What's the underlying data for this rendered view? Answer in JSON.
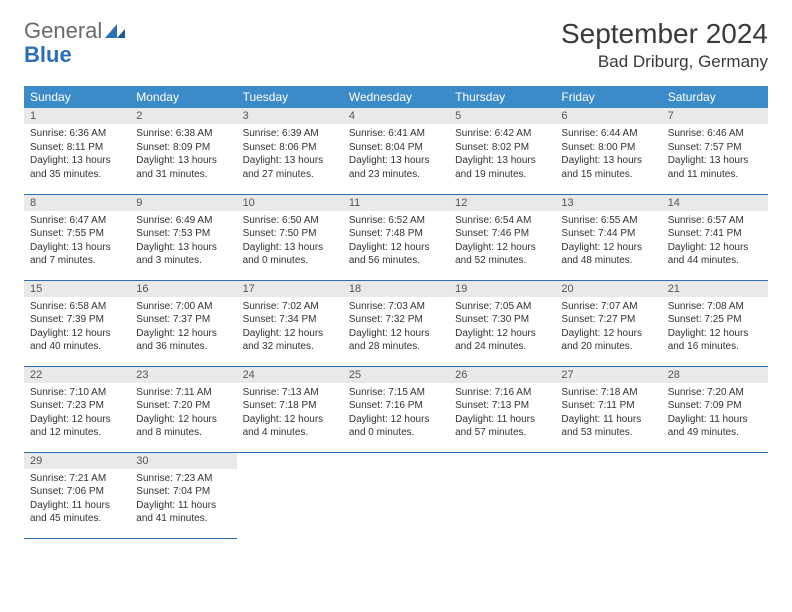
{
  "logo": {
    "general": "General",
    "blue": "Blue"
  },
  "header": {
    "title": "September 2024",
    "location": "Bad Driburg, Germany"
  },
  "colors": {
    "header_bg": "#3b8bc9",
    "header_text": "#ffffff",
    "daynum_bg": "#e9e9e9",
    "border": "#2d6fb5",
    "logo_blue": "#2d6fb5"
  },
  "weekdays": [
    "Sunday",
    "Monday",
    "Tuesday",
    "Wednesday",
    "Thursday",
    "Friday",
    "Saturday"
  ],
  "days": [
    {
      "n": "1",
      "sr": "6:36 AM",
      "ss": "8:11 PM",
      "dh": "13",
      "dm": "35"
    },
    {
      "n": "2",
      "sr": "6:38 AM",
      "ss": "8:09 PM",
      "dh": "13",
      "dm": "31"
    },
    {
      "n": "3",
      "sr": "6:39 AM",
      "ss": "8:06 PM",
      "dh": "13",
      "dm": "27"
    },
    {
      "n": "4",
      "sr": "6:41 AM",
      "ss": "8:04 PM",
      "dh": "13",
      "dm": "23"
    },
    {
      "n": "5",
      "sr": "6:42 AM",
      "ss": "8:02 PM",
      "dh": "13",
      "dm": "19"
    },
    {
      "n": "6",
      "sr": "6:44 AM",
      "ss": "8:00 PM",
      "dh": "13",
      "dm": "15"
    },
    {
      "n": "7",
      "sr": "6:46 AM",
      "ss": "7:57 PM",
      "dh": "13",
      "dm": "11"
    },
    {
      "n": "8",
      "sr": "6:47 AM",
      "ss": "7:55 PM",
      "dh": "13",
      "dm": "7"
    },
    {
      "n": "9",
      "sr": "6:49 AM",
      "ss": "7:53 PM",
      "dh": "13",
      "dm": "3"
    },
    {
      "n": "10",
      "sr": "6:50 AM",
      "ss": "7:50 PM",
      "dh": "13",
      "dm": "0"
    },
    {
      "n": "11",
      "sr": "6:52 AM",
      "ss": "7:48 PM",
      "dh": "12",
      "dm": "56"
    },
    {
      "n": "12",
      "sr": "6:54 AM",
      "ss": "7:46 PM",
      "dh": "12",
      "dm": "52"
    },
    {
      "n": "13",
      "sr": "6:55 AM",
      "ss": "7:44 PM",
      "dh": "12",
      "dm": "48"
    },
    {
      "n": "14",
      "sr": "6:57 AM",
      "ss": "7:41 PM",
      "dh": "12",
      "dm": "44"
    },
    {
      "n": "15",
      "sr": "6:58 AM",
      "ss": "7:39 PM",
      "dh": "12",
      "dm": "40"
    },
    {
      "n": "16",
      "sr": "7:00 AM",
      "ss": "7:37 PM",
      "dh": "12",
      "dm": "36"
    },
    {
      "n": "17",
      "sr": "7:02 AM",
      "ss": "7:34 PM",
      "dh": "12",
      "dm": "32"
    },
    {
      "n": "18",
      "sr": "7:03 AM",
      "ss": "7:32 PM",
      "dh": "12",
      "dm": "28"
    },
    {
      "n": "19",
      "sr": "7:05 AM",
      "ss": "7:30 PM",
      "dh": "12",
      "dm": "24"
    },
    {
      "n": "20",
      "sr": "7:07 AM",
      "ss": "7:27 PM",
      "dh": "12",
      "dm": "20"
    },
    {
      "n": "21",
      "sr": "7:08 AM",
      "ss": "7:25 PM",
      "dh": "12",
      "dm": "16"
    },
    {
      "n": "22",
      "sr": "7:10 AM",
      "ss": "7:23 PM",
      "dh": "12",
      "dm": "12"
    },
    {
      "n": "23",
      "sr": "7:11 AM",
      "ss": "7:20 PM",
      "dh": "12",
      "dm": "8"
    },
    {
      "n": "24",
      "sr": "7:13 AM",
      "ss": "7:18 PM",
      "dh": "12",
      "dm": "4"
    },
    {
      "n": "25",
      "sr": "7:15 AM",
      "ss": "7:16 PM",
      "dh": "12",
      "dm": "0"
    },
    {
      "n": "26",
      "sr": "7:16 AM",
      "ss": "7:13 PM",
      "dh": "11",
      "dm": "57"
    },
    {
      "n": "27",
      "sr": "7:18 AM",
      "ss": "7:11 PM",
      "dh": "11",
      "dm": "53"
    },
    {
      "n": "28",
      "sr": "7:20 AM",
      "ss": "7:09 PM",
      "dh": "11",
      "dm": "49"
    },
    {
      "n": "29",
      "sr": "7:21 AM",
      "ss": "7:06 PM",
      "dh": "11",
      "dm": "45"
    },
    {
      "n": "30",
      "sr": "7:23 AM",
      "ss": "7:04 PM",
      "dh": "11",
      "dm": "41"
    }
  ],
  "labels": {
    "sunrise": "Sunrise: ",
    "sunset": "Sunset: ",
    "daylight_pre": "Daylight: ",
    "hours": " hours",
    "and": "and ",
    "minutes": " minutes."
  }
}
